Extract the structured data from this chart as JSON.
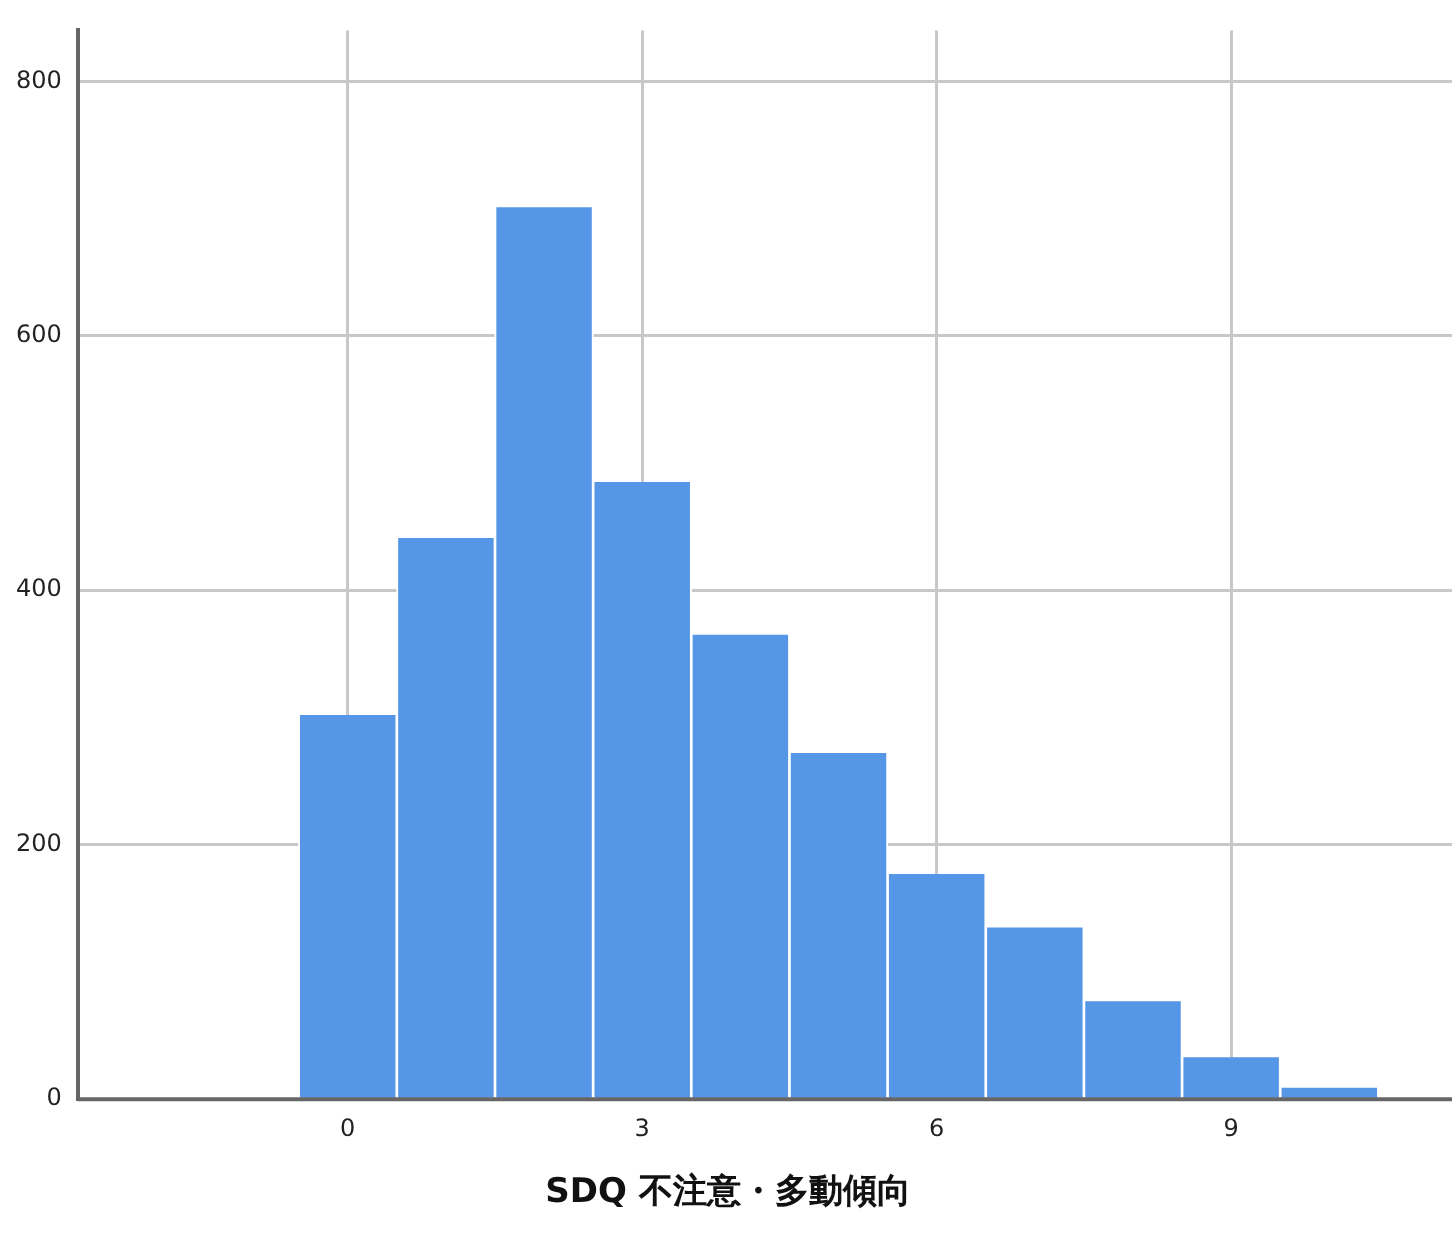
{
  "chart_data": {
    "type": "histogram",
    "xlabel": "SDQ 不注意・多動傾向",
    "bins": [
      -0.5,
      0.5,
      1.5,
      2.5,
      3.5,
      4.5,
      5.5,
      6.5,
      7.5,
      8.5,
      9.5,
      10.5
    ],
    "values": [
      302,
      441,
      701,
      485,
      365,
      272,
      177,
      135,
      77,
      33,
      9
    ],
    "color": "#5596e6",
    "xlim": [
      -2.75,
      11.25
    ],
    "xticks": [
      0,
      3,
      6,
      9
    ],
    "ylim": [
      0,
      840
    ],
    "yticks": [
      0,
      200,
      400,
      600,
      800
    ],
    "grid": true,
    "legend": false
  }
}
